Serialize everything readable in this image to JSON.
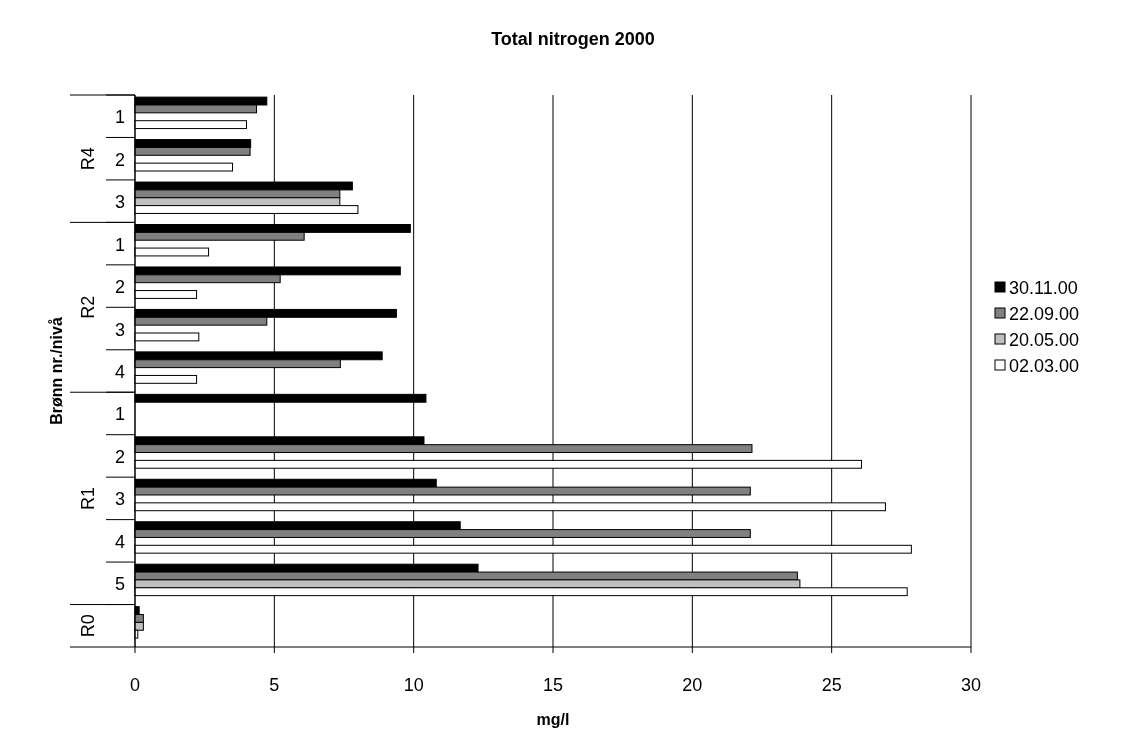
{
  "chart_data": {
    "type": "bar",
    "orientation": "horizontal",
    "title": "Total nitrogen 2000",
    "xlabel": "mg/l",
    "ylabel": "Brønn nr./nivå",
    "categories": [
      "1",
      "2",
      "3",
      "1",
      "2",
      "3",
      "4",
      "1",
      "2",
      "3",
      "4",
      "5",
      null
    ],
    "annotations": [
      "R4",
      "R2",
      "R1",
      "R0"
    ],
    "series": [
      {
        "name": "30.11.00",
        "color": "#000000",
        "values": [
          4.73,
          4.15,
          7.8,
          9.88,
          9.52,
          9.38,
          8.87,
          10.44,
          10.37,
          10.81,
          11.67,
          12.31,
          0.15
        ]
      },
      {
        "name": "22.09.00",
        "color": "#808080",
        "values": [
          4.36,
          4.13,
          7.35,
          6.07,
          5.21,
          4.73,
          7.37,
          null,
          22.14,
          22.08,
          22.08,
          23.77,
          0.3
        ]
      },
      {
        "name": "20.05.00",
        "color": "#c0c0c0",
        "values": [
          null,
          null,
          7.35,
          null,
          null,
          null,
          null,
          null,
          null,
          null,
          null,
          23.86,
          0.3
        ]
      },
      {
        "name": "02.03.00",
        "color": "#ffffff",
        "values": [
          4.0,
          3.5,
          8.0,
          2.64,
          2.21,
          2.29,
          2.21,
          null,
          26.07,
          26.93,
          27.86,
          27.71,
          0.1
        ]
      }
    ],
    "xlim": [
      0,
      30
    ],
    "xticks": [
      0,
      5,
      10,
      15,
      20,
      25,
      30
    ],
    "grid": "x",
    "legend": "right"
  }
}
